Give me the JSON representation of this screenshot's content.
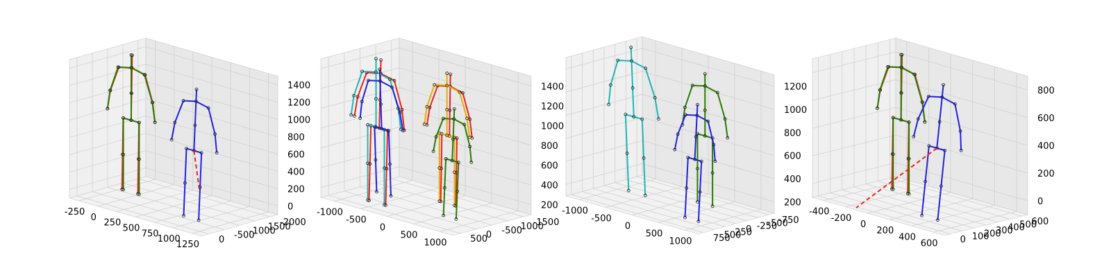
{
  "colors": {
    "pane_left": "#f0f0f0",
    "pane_right": "#e8e8e8",
    "pane_floor": "#f2f2f2",
    "grid": "#d0d0d0",
    "gt": "#e8231e",
    "green": "#2a7a00",
    "blue": "#2020e0",
    "cyan": "#20b4b4",
    "yellow": "#e0b000"
  },
  "chart_data": [
    {
      "type": "3d-skeleton",
      "x_ticks": [
        "-250",
        "0",
        "250",
        "500",
        "750",
        "1000",
        "1250"
      ],
      "y_ticks": [
        "0",
        "-500",
        "-1000",
        "-1500",
        "-2000"
      ],
      "z_ticks": [
        "0",
        "200",
        "400",
        "600",
        "800",
        "1000",
        "1200",
        "1400"
      ],
      "series": [
        {
          "color": "green",
          "people": 1
        },
        {
          "color": "blue",
          "people": 1
        },
        {
          "color": "gt",
          "people": 2
        }
      ]
    },
    {
      "type": "3d-skeleton",
      "x_ticks": [
        "-1000",
        "-500",
        "0",
        "500",
        "1000"
      ],
      "y_ticks": [
        "500",
        "0",
        "-500",
        "-1000",
        "-1500"
      ],
      "z_ticks": [
        "200",
        "400",
        "600",
        "800",
        "1000",
        "1200",
        "1400"
      ],
      "series": [
        {
          "color": "blue",
          "people": 1
        },
        {
          "color": "cyan",
          "people": 1
        },
        {
          "color": "yellow",
          "people": 1
        },
        {
          "color": "green",
          "people": 1
        },
        {
          "color": "gt",
          "people": 3
        }
      ]
    },
    {
      "type": "3d-skeleton",
      "x_ticks": [
        "-1000",
        "-500",
        "0",
        "500",
        "1000"
      ],
      "y_ticks": [
        "750",
        "500",
        "250",
        "0",
        "-250",
        "-500",
        "-750"
      ],
      "z_ticks": [
        "200",
        "400",
        "600",
        "800",
        "1000",
        "1200"
      ],
      "series": [
        {
          "color": "cyan",
          "people": 1
        },
        {
          "color": "green",
          "people": 1
        },
        {
          "color": "blue",
          "people": 1
        }
      ]
    },
    {
      "type": "3d-skeleton",
      "x_ticks": [
        "-400",
        "-200",
        "0",
        "200",
        "400",
        "600"
      ],
      "y_ticks": [
        "0",
        "100",
        "200",
        "300",
        "400",
        "500",
        "600"
      ],
      "z_ticks": [
        "0",
        "200",
        "400",
        "600",
        "800"
      ],
      "series": [
        {
          "color": "green",
          "people": 1
        },
        {
          "color": "blue",
          "people": 1
        },
        {
          "color": "gt",
          "people": 2
        }
      ]
    }
  ]
}
